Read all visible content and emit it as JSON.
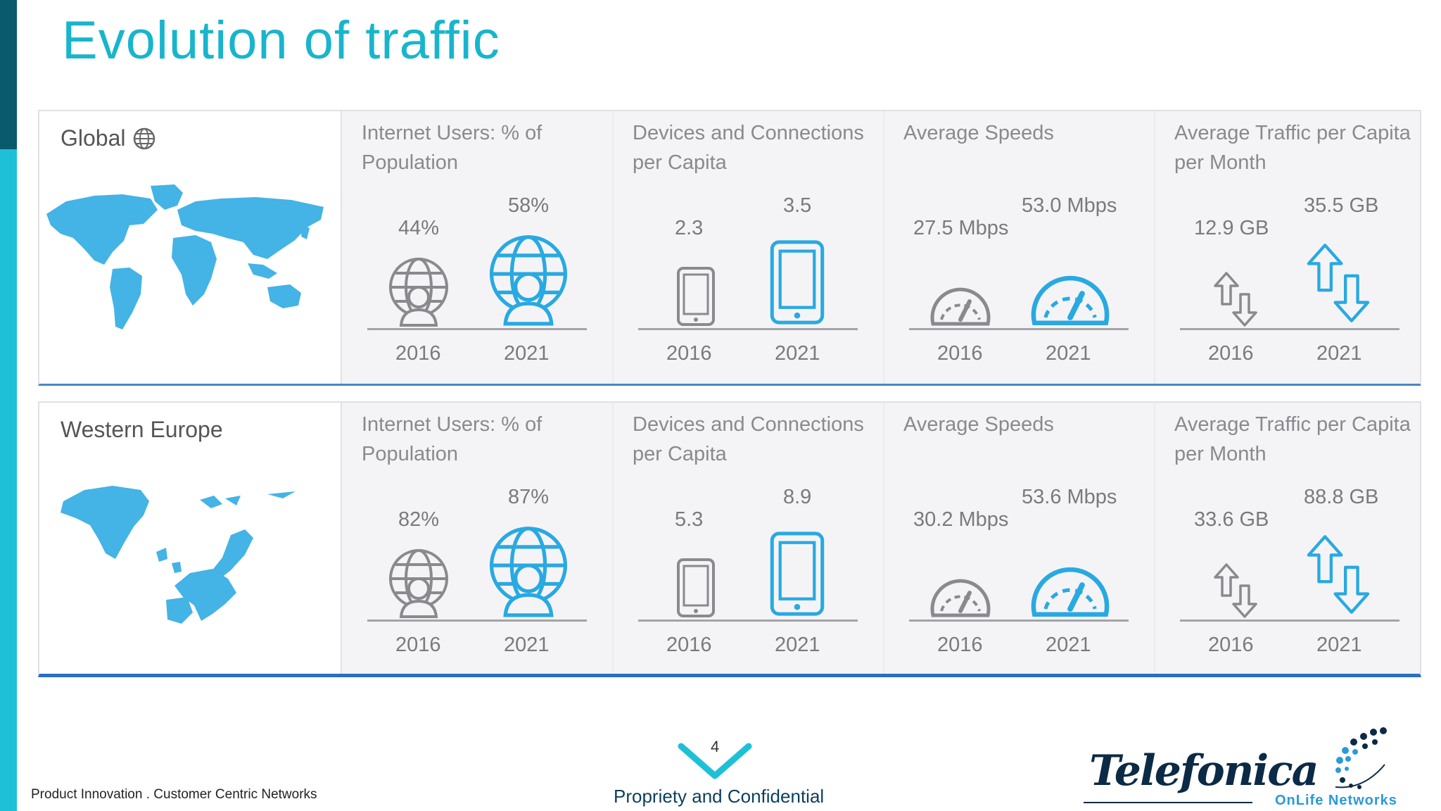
{
  "slide": {
    "title": "Evolution of traffic",
    "page_number": "4",
    "footer_left": "Product Innovation . Customer Centric Networks",
    "footer_center": "Propriety and Confidential",
    "logo_telefonica": "Telefonica",
    "logo_onlife": "OnLife Networks"
  },
  "colors": {
    "accent": "#1ec0d8",
    "dark_accent": "#0a5a6e",
    "icon_blue": "#29a9e1",
    "icon_gray": "#8a8a8e"
  },
  "icons": [
    "globe-icon",
    "globe-user-icon",
    "tablet-icon",
    "speedometer-icon",
    "traffic-arrows-icon"
  ],
  "regions": [
    {
      "name": "Global",
      "metrics": [
        {
          "title": "Internet Users: % of Population",
          "v2016": "44%",
          "v2021": "58%",
          "y2016": "2016",
          "y2021": "2021"
        },
        {
          "title": "Devices and Connections per Capita",
          "v2016": "2.3",
          "v2021": "3.5",
          "y2016": "2016",
          "y2021": "2021"
        },
        {
          "title": "Average Speeds",
          "v2016": "27.5 Mbps",
          "v2021": "53.0 Mbps",
          "y2016": "2016",
          "y2021": "2021"
        },
        {
          "title": "Average Traffic per Capita per Month",
          "v2016": "12.9 GB",
          "v2021": "35.5 GB",
          "y2016": "2016",
          "y2021": "2021"
        }
      ]
    },
    {
      "name": "Western Europe",
      "metrics": [
        {
          "title": "Internet Users: % of Population",
          "v2016": "82%",
          "v2021": "87%",
          "y2016": "2016",
          "y2021": "2021"
        },
        {
          "title": "Devices and Connections per Capita",
          "v2016": "5.3",
          "v2021": "8.9",
          "y2016": "2016",
          "y2021": "2021"
        },
        {
          "title": "Average Speeds",
          "v2016": "30.2 Mbps",
          "v2021": "53.6 Mbps",
          "y2016": "2016",
          "y2021": "2021"
        },
        {
          "title": "Average Traffic per Capita per Month",
          "v2016": "33.6 GB",
          "v2021": "88.8 GB",
          "y2016": "2016",
          "y2021": "2021"
        }
      ]
    }
  ]
}
